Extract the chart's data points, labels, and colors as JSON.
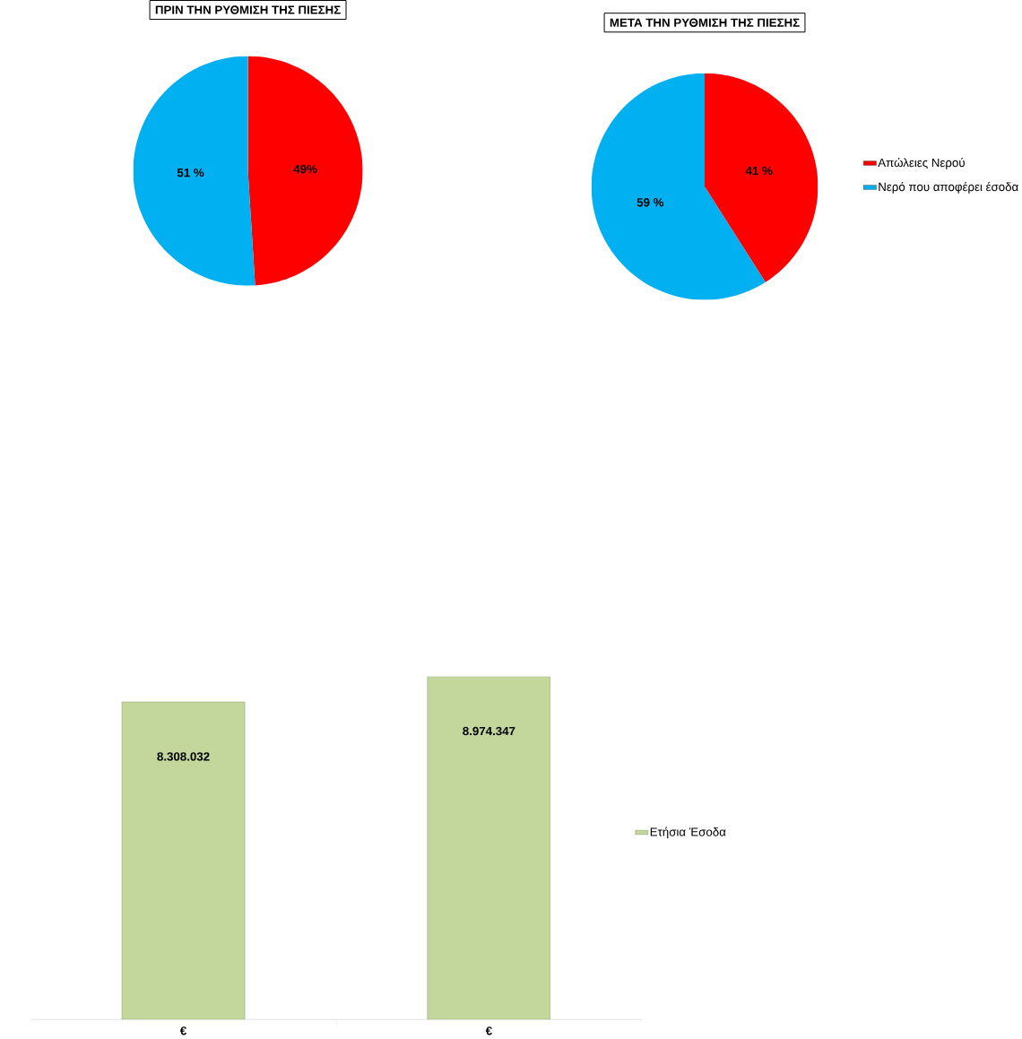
{
  "chart_data": [
    {
      "type": "pie",
      "title": "ΠΡΙΝ ΤΗΝ ΡΥΘΜΙΣΗ ΤΗΣ ΠΙΕΣΗΣ",
      "categories": [
        null,
        null
      ],
      "values": [
        49,
        51
      ],
      "colors": [
        "#ff0000",
        "#00b0f0"
      ],
      "value_labels": [
        "49%",
        "51 %"
      ],
      "legend": false
    },
    {
      "type": "pie",
      "title": "ΜΕΤΑ ΤΗΝ ΡΥΘΜΙΣΗ ΤΗΣ ΠΙΕΣΗΣ",
      "categories": [
        "Απώλειες Νερού",
        "Νερό που αποφέρει έσοδα"
      ],
      "values": [
        41,
        59
      ],
      "colors": [
        "#ff0000",
        "#00b0f0"
      ],
      "value_labels": [
        "41 %",
        "59 %"
      ],
      "legend": "right"
    },
    {
      "type": "bar",
      "categories": [
        "€",
        "€"
      ],
      "series": [
        {
          "name": "Ετήσια Έσοδα",
          "color": "#c3d69b",
          "values": [
            8308032,
            8974347
          ],
          "value_labels": [
            "8.308.032",
            "8.974.347"
          ]
        }
      ],
      "legend": "right"
    }
  ]
}
